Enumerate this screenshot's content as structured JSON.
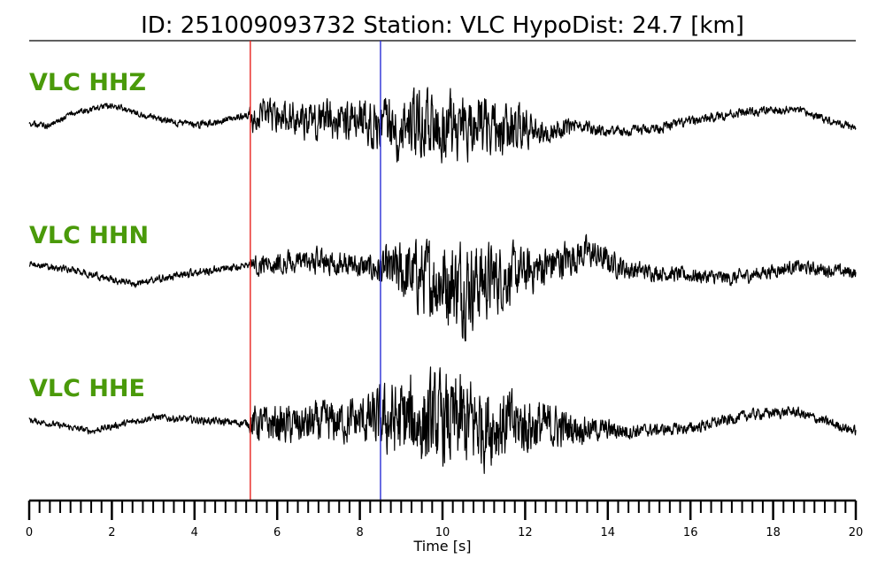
{
  "title": "ID: 251009093732   Station: VLC   HypoDist:    24.7 [km]",
  "colors": {
    "label": "#4a9a0a",
    "trace": "#000000",
    "p_pick": "#e8231f",
    "s_pick": "#2a2fd6"
  },
  "chart_data": {
    "type": "line",
    "title": "ID: 251009093732   Station: VLC   HypoDist:    24.7 [km]",
    "xlabel": "Time [s]",
    "ylabel": "",
    "xlim": [
      0,
      20
    ],
    "x_ticks": [
      0,
      2,
      4,
      6,
      8,
      10,
      12,
      14,
      16,
      18,
      20
    ],
    "minor_tick_step": 0.25,
    "grid": false,
    "picks": [
      {
        "name": "P",
        "time": 5.35,
        "color": "#e8231f"
      },
      {
        "name": "S",
        "time": 8.5,
        "color": "#2a2fd6"
      }
    ],
    "series": [
      {
        "name": "VLC HHZ",
        "sample_rate_hz": 100,
        "envelope_keypoints": [
          [
            0,
            0.08
          ],
          [
            5.3,
            0.1
          ],
          [
            5.4,
            0.45
          ],
          [
            8.0,
            0.55
          ],
          [
            9.0,
            0.9
          ],
          [
            11.5,
            0.75
          ],
          [
            12.5,
            0.3
          ],
          [
            14,
            0.15
          ],
          [
            20,
            0.1
          ]
        ],
        "low_freq_keypoints": [
          [
            0,
            0
          ],
          [
            0.5,
            -0.05
          ],
          [
            1.0,
            0.25
          ],
          [
            2.0,
            0.45
          ],
          [
            3.0,
            0.15
          ],
          [
            4.0,
            -0.05
          ],
          [
            5.0,
            0.15
          ],
          [
            5.5,
            0.2
          ],
          [
            7.0,
            0.1
          ],
          [
            9.5,
            0.0
          ],
          [
            12.5,
            -0.15
          ],
          [
            13.5,
            -0.1
          ],
          [
            14.5,
            -0.2
          ],
          [
            15.5,
            -0.05
          ],
          [
            17.0,
            0.25
          ],
          [
            18.5,
            0.35
          ],
          [
            19.5,
            0.05
          ],
          [
            20.0,
            -0.1
          ]
        ]
      },
      {
        "name": "VLC HHN",
        "sample_rate_hz": 100,
        "envelope_keypoints": [
          [
            0,
            0.06
          ],
          [
            5.3,
            0.08
          ],
          [
            5.4,
            0.2
          ],
          [
            8.3,
            0.25
          ],
          [
            9.0,
            0.6
          ],
          [
            10.5,
            0.9
          ],
          [
            12.0,
            0.45
          ],
          [
            13.5,
            0.3
          ],
          [
            15,
            0.15
          ],
          [
            20,
            0.12
          ]
        ],
        "low_freq_keypoints": [
          [
            0,
            0.1
          ],
          [
            1.0,
            0.0
          ],
          [
            2.5,
            -0.25
          ],
          [
            4.0,
            -0.05
          ],
          [
            5.5,
            0.1
          ],
          [
            7.0,
            0.15
          ],
          [
            8.5,
            0.0
          ],
          [
            10.5,
            -0.25
          ],
          [
            12.0,
            -0.05
          ],
          [
            13.5,
            0.3
          ],
          [
            14.5,
            0.0
          ],
          [
            16.0,
            -0.1
          ],
          [
            17.0,
            -0.15
          ],
          [
            18.5,
            0.05
          ],
          [
            20.0,
            -0.05
          ]
        ]
      },
      {
        "name": "VLC HHE",
        "sample_rate_hz": 100,
        "envelope_keypoints": [
          [
            0,
            0.06
          ],
          [
            5.3,
            0.08
          ],
          [
            5.4,
            0.35
          ],
          [
            8.0,
            0.45
          ],
          [
            9.0,
            0.85
          ],
          [
            10.5,
            0.95
          ],
          [
            12.0,
            0.6
          ],
          [
            13.5,
            0.25
          ],
          [
            15,
            0.12
          ],
          [
            20,
            0.1
          ]
        ],
        "low_freq_keypoints": [
          [
            0,
            0.05
          ],
          [
            1.5,
            -0.15
          ],
          [
            3.0,
            0.1
          ],
          [
            4.0,
            0.05
          ],
          [
            5.0,
            0.0
          ],
          [
            6.5,
            -0.05
          ],
          [
            8.0,
            0.05
          ],
          [
            10.0,
            0.0
          ],
          [
            12.0,
            -0.05
          ],
          [
            14.5,
            -0.15
          ],
          [
            16.0,
            -0.1
          ],
          [
            17.5,
            0.15
          ],
          [
            18.5,
            0.2
          ],
          [
            20.0,
            -0.15
          ]
        ]
      }
    ]
  }
}
